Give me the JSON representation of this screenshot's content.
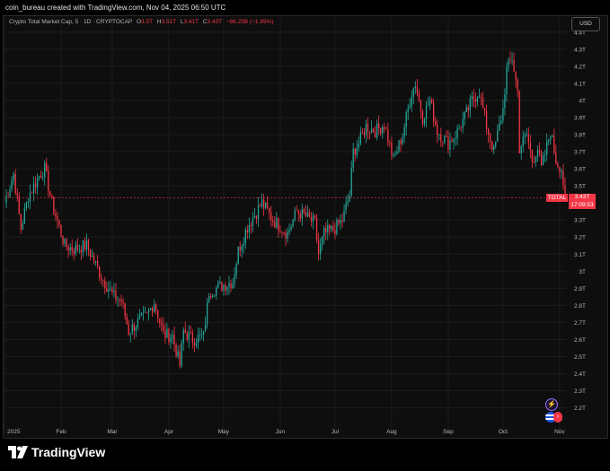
{
  "header": {
    "caption": "coin_bureau created with TradingView.com, Nov 04, 2025 06:50 UTC"
  },
  "legend": {
    "symbol": "Crypto Total Market Cap, 5 · 1D · CRYPTOCAP",
    "open_label": "O",
    "open_value": "3.5T",
    "high_label": "H",
    "high_value": "3.51T",
    "low_label": "L",
    "low_value": "3.41T",
    "close_label": "C",
    "close_value": "3.43T",
    "change": "−66.25B (−1.89%)"
  },
  "currency_button": "USD",
  "price_tag": {
    "name": "TOTAL",
    "value": "3.43T",
    "countdown": "17:09:53"
  },
  "brand": {
    "name": "TradingView"
  },
  "icons": {
    "alert": "lightning-icon",
    "events": "us-flag-icon"
  },
  "colors": {
    "up": "#26a69a",
    "down": "#f23645",
    "background": "#0e0e0e",
    "price_line": "#f23645"
  },
  "chart_data": {
    "type": "candlestick",
    "title": "Crypto Total Market Cap, 5 · 1D · CRYPTOCAP",
    "y_unit": "USD (trillions)",
    "y_tick_labels": [
      "4.4T",
      "4.3T",
      "4.2T",
      "4.1T",
      "4T",
      "3.9T",
      "3.8T",
      "3.7T",
      "3.6T",
      "3.5T",
      "3.3T",
      "3.2T",
      "3.1T",
      "3T",
      "2.9T",
      "2.8T",
      "2.7T",
      "2.6T",
      "2.5T",
      "2.4T",
      "2.3T",
      "2.2T"
    ],
    "y_ticks": [
      4.4,
      4.3,
      4.2,
      4.1,
      4.0,
      3.9,
      3.8,
      3.7,
      3.6,
      3.5,
      3.3,
      3.2,
      3.1,
      3.0,
      2.9,
      2.8,
      2.7,
      2.6,
      2.5,
      2.4,
      2.3,
      2.2
    ],
    "ylim": [
      2.14,
      4.42
    ],
    "x_tick_labels": [
      "2025",
      "Feb",
      "Mar",
      "Apr",
      "May",
      "Jun",
      "Jul",
      "Aug",
      "Sep",
      "Oct",
      "Nov"
    ],
    "x_start": "2025-01-01",
    "x_end": "2025-11-04",
    "month_starts": [
      "2025-01-01",
      "2025-02-01",
      "2025-03-01",
      "2025-04-01",
      "2025-05-01",
      "2025-06-01",
      "2025-07-01",
      "2025-08-01",
      "2025-09-01",
      "2025-10-01",
      "2025-11-01"
    ],
    "last_close": 3.43,
    "close_path": [
      {
        "date": "2025-01-01",
        "close": 3.4
      },
      {
        "date": "2025-01-06",
        "close": 3.57
      },
      {
        "date": "2025-01-10",
        "close": 3.25
      },
      {
        "date": "2025-01-14",
        "close": 3.44
      },
      {
        "date": "2025-01-20",
        "close": 3.56
      },
      {
        "date": "2025-01-23",
        "close": 3.6
      },
      {
        "date": "2025-01-27",
        "close": 3.4
      },
      {
        "date": "2025-02-03",
        "close": 3.15
      },
      {
        "date": "2025-02-08",
        "close": 3.13
      },
      {
        "date": "2025-02-15",
        "close": 3.15
      },
      {
        "date": "2025-02-24",
        "close": 2.95
      },
      {
        "date": "2025-03-02",
        "close": 2.85
      },
      {
        "date": "2025-03-06",
        "close": 2.83
      },
      {
        "date": "2025-03-10",
        "close": 2.65
      },
      {
        "date": "2025-03-15",
        "close": 2.7
      },
      {
        "date": "2025-03-20",
        "close": 2.74
      },
      {
        "date": "2025-03-24",
        "close": 2.82
      },
      {
        "date": "2025-03-29",
        "close": 2.63
      },
      {
        "date": "2025-04-03",
        "close": 2.62
      },
      {
        "date": "2025-04-07",
        "close": 2.45
      },
      {
        "date": "2025-04-09",
        "close": 2.65
      },
      {
        "date": "2025-04-14",
        "close": 2.6
      },
      {
        "date": "2025-04-20",
        "close": 2.62
      },
      {
        "date": "2025-04-23",
        "close": 2.88
      },
      {
        "date": "2025-05-01",
        "close": 2.92
      },
      {
        "date": "2025-05-06",
        "close": 2.94
      },
      {
        "date": "2025-05-09",
        "close": 3.12
      },
      {
        "date": "2025-05-14",
        "close": 3.26
      },
      {
        "date": "2025-05-22",
        "close": 3.4
      },
      {
        "date": "2025-05-28",
        "close": 3.3
      },
      {
        "date": "2025-06-05",
        "close": 3.22
      },
      {
        "date": "2025-06-10",
        "close": 3.35
      },
      {
        "date": "2025-06-15",
        "close": 3.32
      },
      {
        "date": "2025-06-20",
        "close": 3.28
      },
      {
        "date": "2025-06-22",
        "close": 3.1
      },
      {
        "date": "2025-06-25",
        "close": 3.22
      },
      {
        "date": "2025-07-01",
        "close": 3.25
      },
      {
        "date": "2025-07-05",
        "close": 3.3
      },
      {
        "date": "2025-07-09",
        "close": 3.45
      },
      {
        "date": "2025-07-11",
        "close": 3.7
      },
      {
        "date": "2025-07-14",
        "close": 3.75
      },
      {
        "date": "2025-07-18",
        "close": 3.85
      },
      {
        "date": "2025-07-23",
        "close": 3.82
      },
      {
        "date": "2025-07-28",
        "close": 3.86
      },
      {
        "date": "2025-08-02",
        "close": 3.65
      },
      {
        "date": "2025-08-07",
        "close": 3.8
      },
      {
        "date": "2025-08-12",
        "close": 4.05
      },
      {
        "date": "2025-08-14",
        "close": 4.1
      },
      {
        "date": "2025-08-18",
        "close": 3.9
      },
      {
        "date": "2025-08-22",
        "close": 4.0
      },
      {
        "date": "2025-08-26",
        "close": 3.82
      },
      {
        "date": "2025-09-01",
        "close": 3.75
      },
      {
        "date": "2025-09-05",
        "close": 3.8
      },
      {
        "date": "2025-09-10",
        "close": 3.9
      },
      {
        "date": "2025-09-14",
        "close": 4.0
      },
      {
        "date": "2025-09-18",
        "close": 4.05
      },
      {
        "date": "2025-09-22",
        "close": 3.85
      },
      {
        "date": "2025-09-26",
        "close": 3.7
      },
      {
        "date": "2025-10-01",
        "close": 3.95
      },
      {
        "date": "2025-10-03",
        "close": 4.18
      },
      {
        "date": "2025-10-06",
        "close": 4.25
      },
      {
        "date": "2025-10-09",
        "close": 4.05
      },
      {
        "date": "2025-10-10",
        "close": 3.72
      },
      {
        "date": "2025-10-14",
        "close": 3.8
      },
      {
        "date": "2025-10-17",
        "close": 3.65
      },
      {
        "date": "2025-10-20",
        "close": 3.72
      },
      {
        "date": "2025-10-22",
        "close": 3.6
      },
      {
        "date": "2025-10-27",
        "close": 3.82
      },
      {
        "date": "2025-10-30",
        "close": 3.65
      },
      {
        "date": "2025-11-02",
        "close": 3.6
      },
      {
        "date": "2025-11-04",
        "close": 3.43
      }
    ]
  }
}
